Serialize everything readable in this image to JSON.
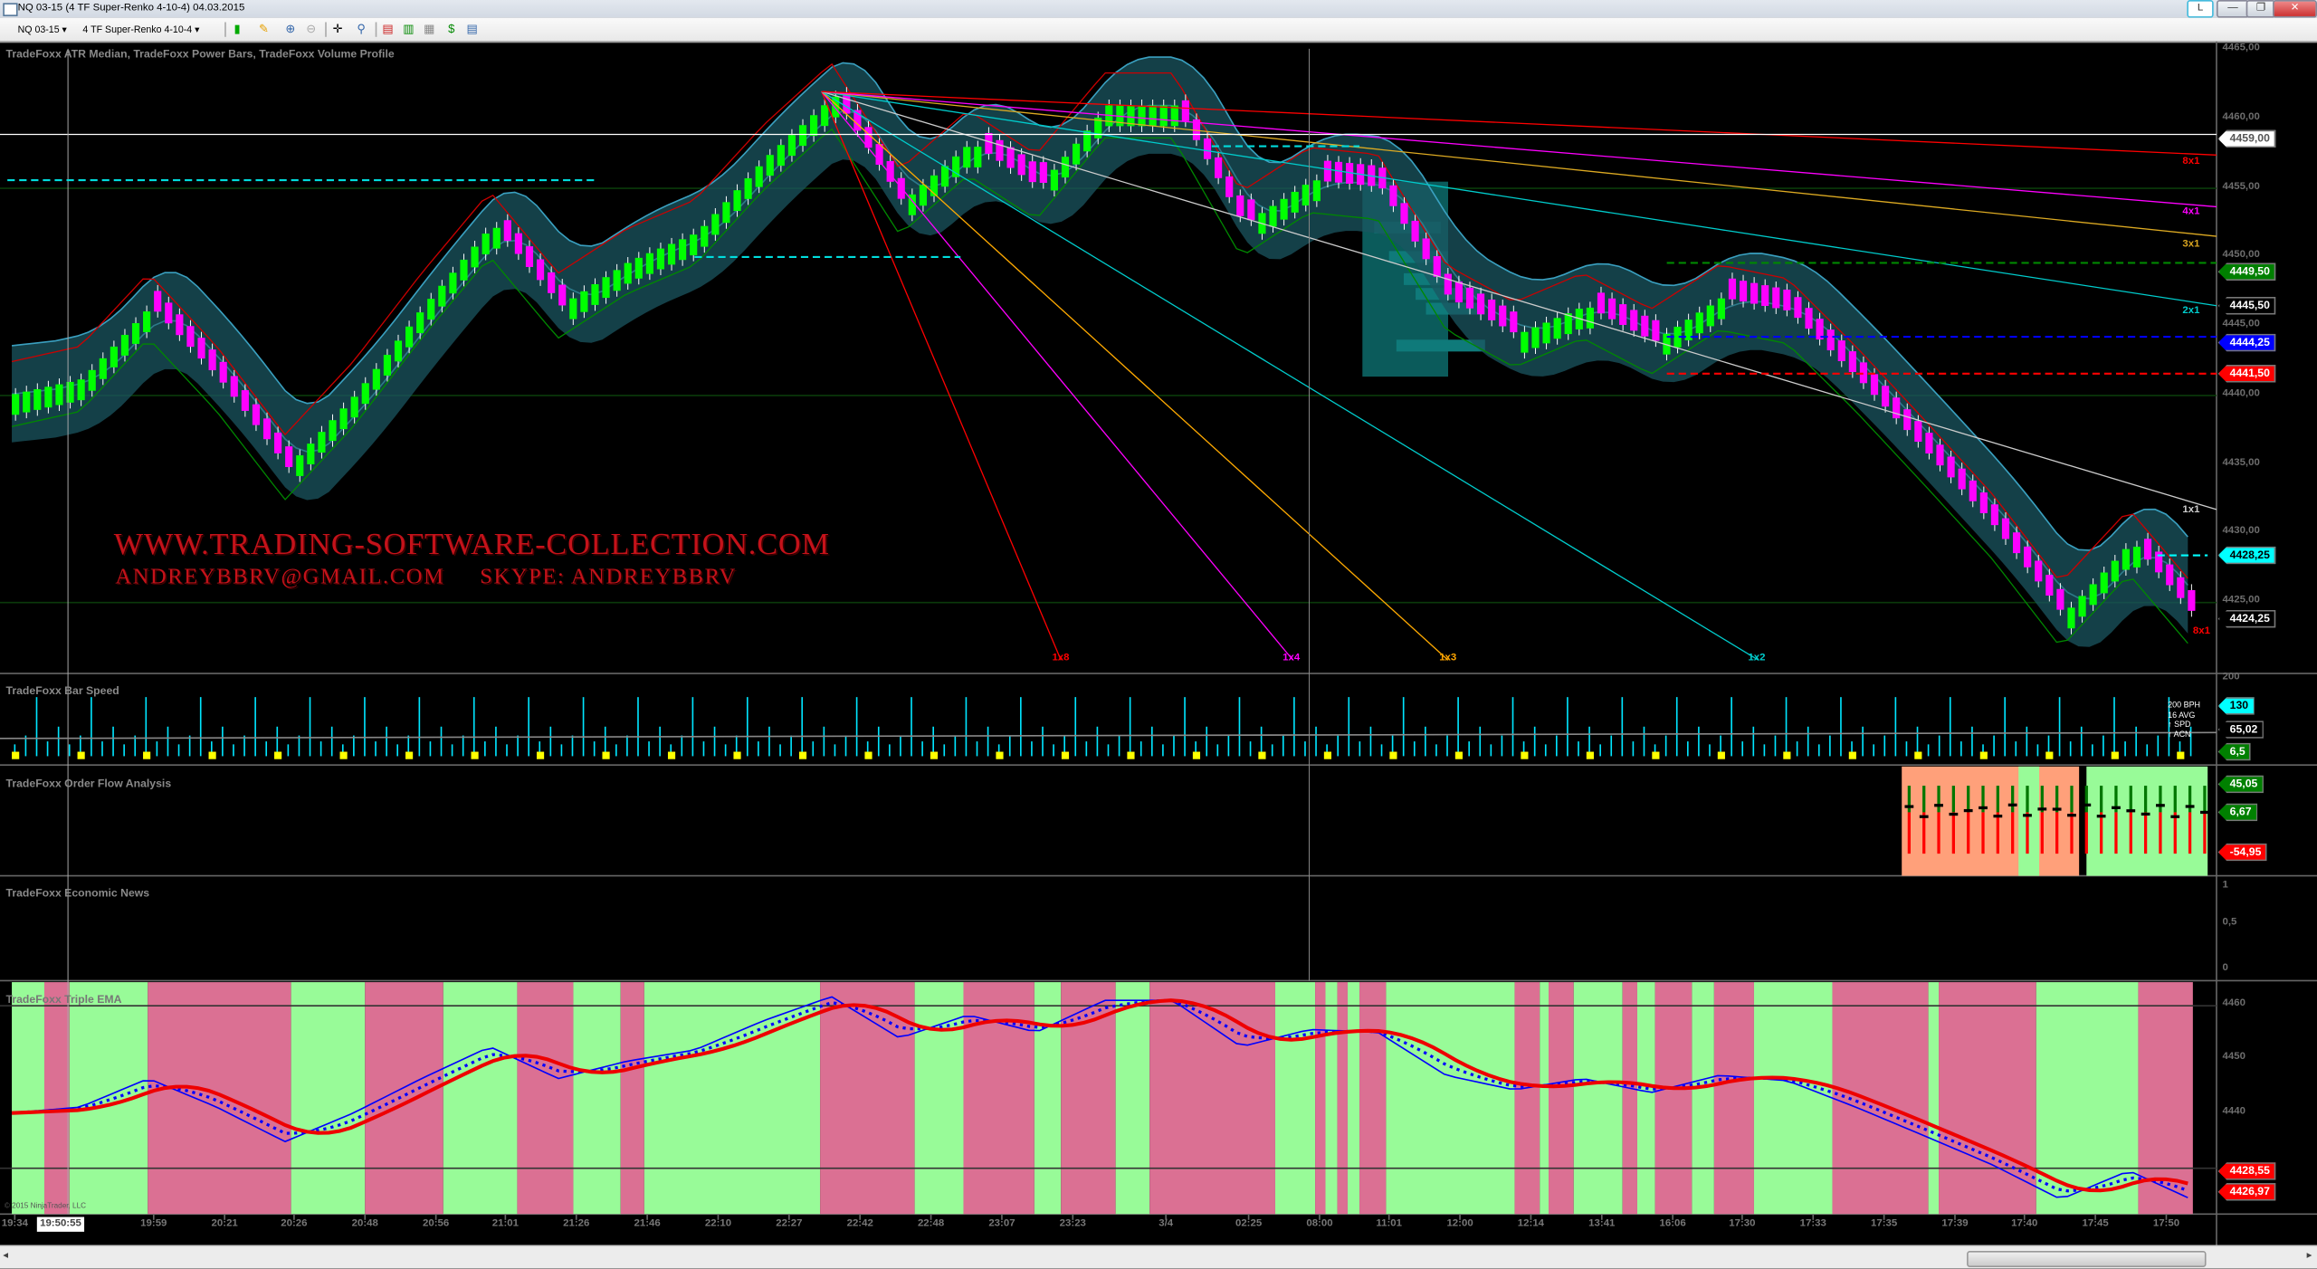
{
  "window": {
    "title": "NQ 03-15 (4 TF Super-Renko 4-10-4)  04.03.2015",
    "link_button": "L",
    "minimize": "—",
    "restore": "❐",
    "close": "✕"
  },
  "toolbar": {
    "instrument": "NQ 03-15",
    "period": "4 TF Super-Renko 4-10-4",
    "icons": [
      "chart-style-icon",
      "drawing-pencil-icon",
      "zoom-in-icon",
      "zoom-out-icon",
      "crosshair-icon",
      "magnifier-icon",
      "strategies-icon",
      "indicators-icon",
      "chart-properties-icon",
      "dollar-icon",
      "data-box-icon"
    ]
  },
  "panels": {
    "main": {
      "title": "TradeFoxx ATR Median, TradeFoxx Power Bars, TradeFoxx Volume Profile",
      "axis": [
        "4465,00",
        "4460,00",
        "4455,00",
        "4450,00",
        "4445,00",
        "4440,00",
        "4435,00",
        "4430,00",
        "4425,00"
      ],
      "price_labels": [
        {
          "text": "4459,00",
          "bg": "#ffffff",
          "fg": "#555555"
        },
        {
          "text": "4449,50",
          "bg": "#008000",
          "fg": "#ffffff"
        },
        {
          "text": "4445,50",
          "bg": "#000000",
          "fg": "#ffffff"
        },
        {
          "text": "4444,25",
          "bg": "#0000ff",
          "fg": "#ffffff"
        },
        {
          "text": "4441,50",
          "bg": "#ff0000",
          "fg": "#ffffff"
        },
        {
          "text": "4428,25",
          "bg": "#00ffff",
          "fg": "#000000"
        },
        {
          "text": "4424,25",
          "bg": "#000000",
          "fg": "#ffffff"
        }
      ],
      "fan_labels": [
        {
          "text": "1x8",
          "color": "#ff0000"
        },
        {
          "text": "1x4",
          "color": "#ff00ff"
        },
        {
          "text": "1x3",
          "color": "#ffa500"
        },
        {
          "text": "1x2",
          "color": "#00cccc"
        },
        {
          "text": "8x1",
          "color": "#ff0000"
        },
        {
          "text": "4x1",
          "color": "#ff00ff"
        },
        {
          "text": "3x1",
          "color": "#daa520"
        },
        {
          "text": "2x1",
          "color": "#00cccc"
        },
        {
          "text": "1x1",
          "color": "#cccccc"
        },
        {
          "text": "8x1",
          "color": "#ff0000"
        }
      ],
      "watermark_line1": "WWW.TRADING-SOFTWARE-COLLECTION.COM",
      "watermark_line2": "ANDREYBBRV@GMAIL.COM     SKYPE: ANDREYBBRV",
      "price_path": [
        4440.1,
        4441.2,
        4446.5,
        4441.2,
        4434.8,
        4440.1,
        4446.5,
        4452.4,
        4446.5,
        4449.7,
        4451.8,
        4457.2,
        4461.7,
        4454,
        4458.3,
        4455.1,
        4461,
        4461,
        4452.4,
        4455.6,
        4455.1,
        4447.1,
        4444.4,
        4446.5,
        4443.9,
        4447.1,
        4446.1,
        4441.2,
        4435.9,
        4430.5,
        4424.1,
        4429.4,
        4423.6
      ],
      "up_color": "#00ff00",
      "down_color": "#ff00ff"
    },
    "bar_speed": {
      "title": "TradeFoxx Bar Speed",
      "axis_top": "200",
      "legend": "200 BPH\n16 AVG\n↑ SPD\n↑ ACN",
      "labels": [
        {
          "text": "130",
          "bg": "#00ffff",
          "fg": "#000000"
        },
        {
          "text": "65,02",
          "bg": "#000000",
          "fg": "#ffffff"
        },
        {
          "text": "6,5",
          "bg": "#008000",
          "fg": "#ffffff"
        }
      ]
    },
    "order_flow": {
      "title": "TradeFoxx Order Flow Analysis",
      "labels": [
        {
          "text": "45,05",
          "bg": "#008000",
          "fg": "#ffffff"
        },
        {
          "text": "6,67",
          "bg": "#008000",
          "fg": "#ffffff"
        },
        {
          "text": "-54,95",
          "bg": "#ff0000",
          "fg": "#ffffff"
        }
      ]
    },
    "economic_news": {
      "title": "TradeFoxx Economic News",
      "axis": [
        "1",
        "0,5",
        "0"
      ]
    },
    "triple_ema": {
      "title": "TradeFoxx Triple EMA",
      "axis": [
        "4460",
        "4450",
        "4440"
      ],
      "labels": [
        {
          "text": "4428,55",
          "bg": "#ff0000",
          "fg": "#ffffff"
        },
        {
          "text": "4426,97",
          "bg": "#ff0000",
          "fg": "#ffffff"
        }
      ],
      "copyright": "© 2015 NinjaTrader, LLC",
      "bull_color": "#98fb98",
      "bear_color": "#db7093"
    }
  },
  "time_axis": {
    "cursor_time": "19:50:55",
    "labels": [
      "19:34",
      "19:59",
      "20:21",
      "20:26",
      "20:48",
      "20:56",
      "21:01",
      "21:26",
      "21:46",
      "22:10",
      "22:27",
      "22:42",
      "22:48",
      "23:07",
      "23:23",
      "3/4",
      "02:25",
      "08:00",
      "11:01",
      "12:00",
      "12:14",
      "13:41",
      "16:06",
      "17:30",
      "17:33",
      "17:35",
      "17:39",
      "17:40",
      "17:45",
      "17:50"
    ]
  }
}
